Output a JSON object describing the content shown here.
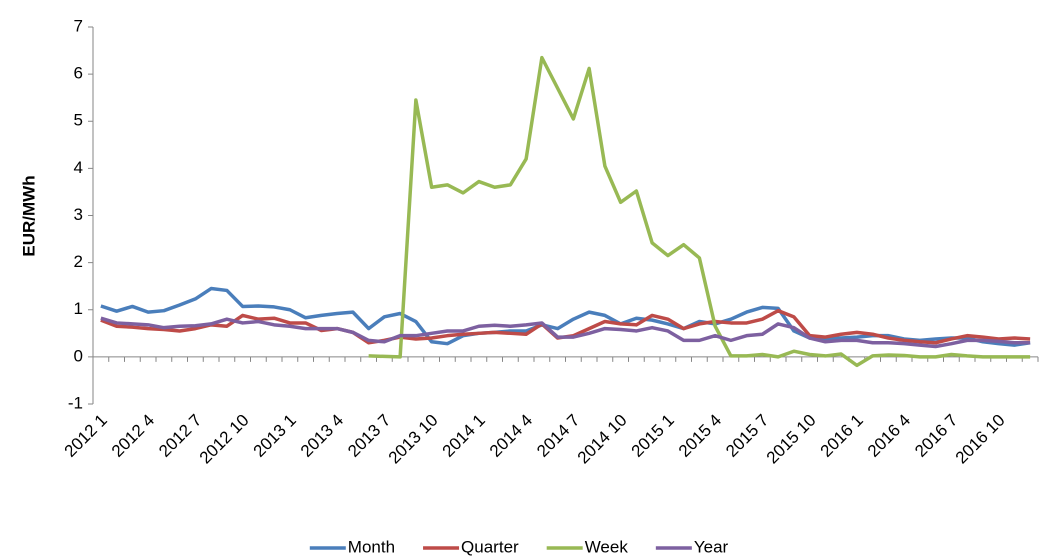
{
  "chart_data": {
    "type": "line",
    "ylabel": "EUR/MWh",
    "categories": [
      "2012 1",
      null,
      null,
      "2012 4",
      null,
      null,
      "2012 7",
      null,
      null,
      "2012 10",
      null,
      null,
      "2013 1",
      null,
      null,
      "2013 4",
      null,
      null,
      "2013 7",
      null,
      null,
      "2013 10",
      null,
      null,
      "2014 1",
      null,
      null,
      "2014 4",
      null,
      null,
      "2014 7",
      null,
      null,
      "2014 10",
      null,
      null,
      "2015 1",
      null,
      null,
      "2015 4",
      null,
      null,
      "2015 7",
      null,
      null,
      "2015 10",
      null,
      null,
      "2016 1",
      null,
      null,
      "2016 4",
      null,
      null,
      "2016 7",
      null,
      null,
      "2016 10",
      null,
      null
    ],
    "series": [
      {
        "name": "Month",
        "color": "#4a7ebb",
        "values": [
          1.08,
          0.97,
          1.07,
          0.95,
          0.98,
          1.1,
          1.23,
          1.45,
          1.41,
          1.07,
          1.08,
          1.06,
          1.0,
          0.83,
          0.88,
          0.92,
          0.95,
          0.6,
          0.85,
          0.92,
          0.75,
          0.32,
          0.28,
          0.45,
          0.5,
          0.52,
          0.55,
          0.55,
          0.68,
          0.6,
          0.8,
          0.95,
          0.88,
          0.7,
          0.82,
          0.78,
          0.7,
          0.6,
          0.75,
          0.7,
          0.8,
          0.95,
          1.05,
          1.03,
          0.55,
          0.4,
          0.38,
          0.4,
          0.42,
          0.45,
          0.45,
          0.38,
          0.35,
          0.38,
          0.4,
          0.4,
          0.32,
          0.28,
          0.25,
          0.3
        ]
      },
      {
        "name": "Quarter",
        "color": "#be4b48",
        "values": [
          0.78,
          0.65,
          0.63,
          0.6,
          0.58,
          0.55,
          0.6,
          0.68,
          0.65,
          0.88,
          0.8,
          0.82,
          0.72,
          0.72,
          0.56,
          0.6,
          0.52,
          0.3,
          0.35,
          0.42,
          0.38,
          0.4,
          0.45,
          0.48,
          0.5,
          0.52,
          0.5,
          0.48,
          0.7,
          0.4,
          0.45,
          0.6,
          0.75,
          0.7,
          0.68,
          0.88,
          0.8,
          0.6,
          0.7,
          0.75,
          0.72,
          0.72,
          0.8,
          0.98,
          0.85,
          0.45,
          0.42,
          0.48,
          0.52,
          0.48,
          0.4,
          0.35,
          0.32,
          0.3,
          0.38,
          0.45,
          0.42,
          0.38,
          0.4,
          0.38
        ]
      },
      {
        "name": "Week",
        "color": "#98b954",
        "values": [
          null,
          null,
          null,
          null,
          null,
          null,
          null,
          null,
          null,
          null,
          null,
          null,
          null,
          null,
          null,
          null,
          null,
          0.02,
          0.01,
          0.0,
          5.45,
          3.6,
          3.65,
          3.48,
          3.72,
          3.6,
          3.65,
          4.2,
          6.35,
          5.7,
          5.05,
          6.12,
          4.05,
          3.28,
          3.52,
          2.42,
          2.15,
          2.38,
          2.1,
          0.65,
          0.02,
          0.02,
          0.05,
          0.0,
          0.12,
          0.05,
          0.02,
          0.06,
          -0.18,
          0.02,
          0.04,
          0.03,
          0.0,
          0.0,
          0.05,
          0.02,
          0.0,
          0.0,
          0.0,
          0.0
        ]
      },
      {
        "name": "Year",
        "color": "#7d60a0",
        "values": [
          0.82,
          0.72,
          0.7,
          0.68,
          0.62,
          0.65,
          0.66,
          0.7,
          0.8,
          0.72,
          0.75,
          0.68,
          0.65,
          0.6,
          0.6,
          0.6,
          0.52,
          0.35,
          0.32,
          0.45,
          0.45,
          0.5,
          0.55,
          0.55,
          0.65,
          0.67,
          0.65,
          0.68,
          0.72,
          0.42,
          0.42,
          0.5,
          0.6,
          0.58,
          0.55,
          0.62,
          0.55,
          0.35,
          0.35,
          0.45,
          0.35,
          0.45,
          0.48,
          0.7,
          0.62,
          0.4,
          0.32,
          0.35,
          0.35,
          0.3,
          0.3,
          0.28,
          0.25,
          0.22,
          0.28,
          0.35,
          0.35,
          0.33,
          0.3,
          0.3
        ]
      }
    ],
    "ylim": [
      -1,
      7
    ],
    "yticks": [
      -1,
      0,
      1,
      2,
      3,
      4,
      5,
      6,
      7
    ],
    "grid": false,
    "legend": "bottom"
  }
}
